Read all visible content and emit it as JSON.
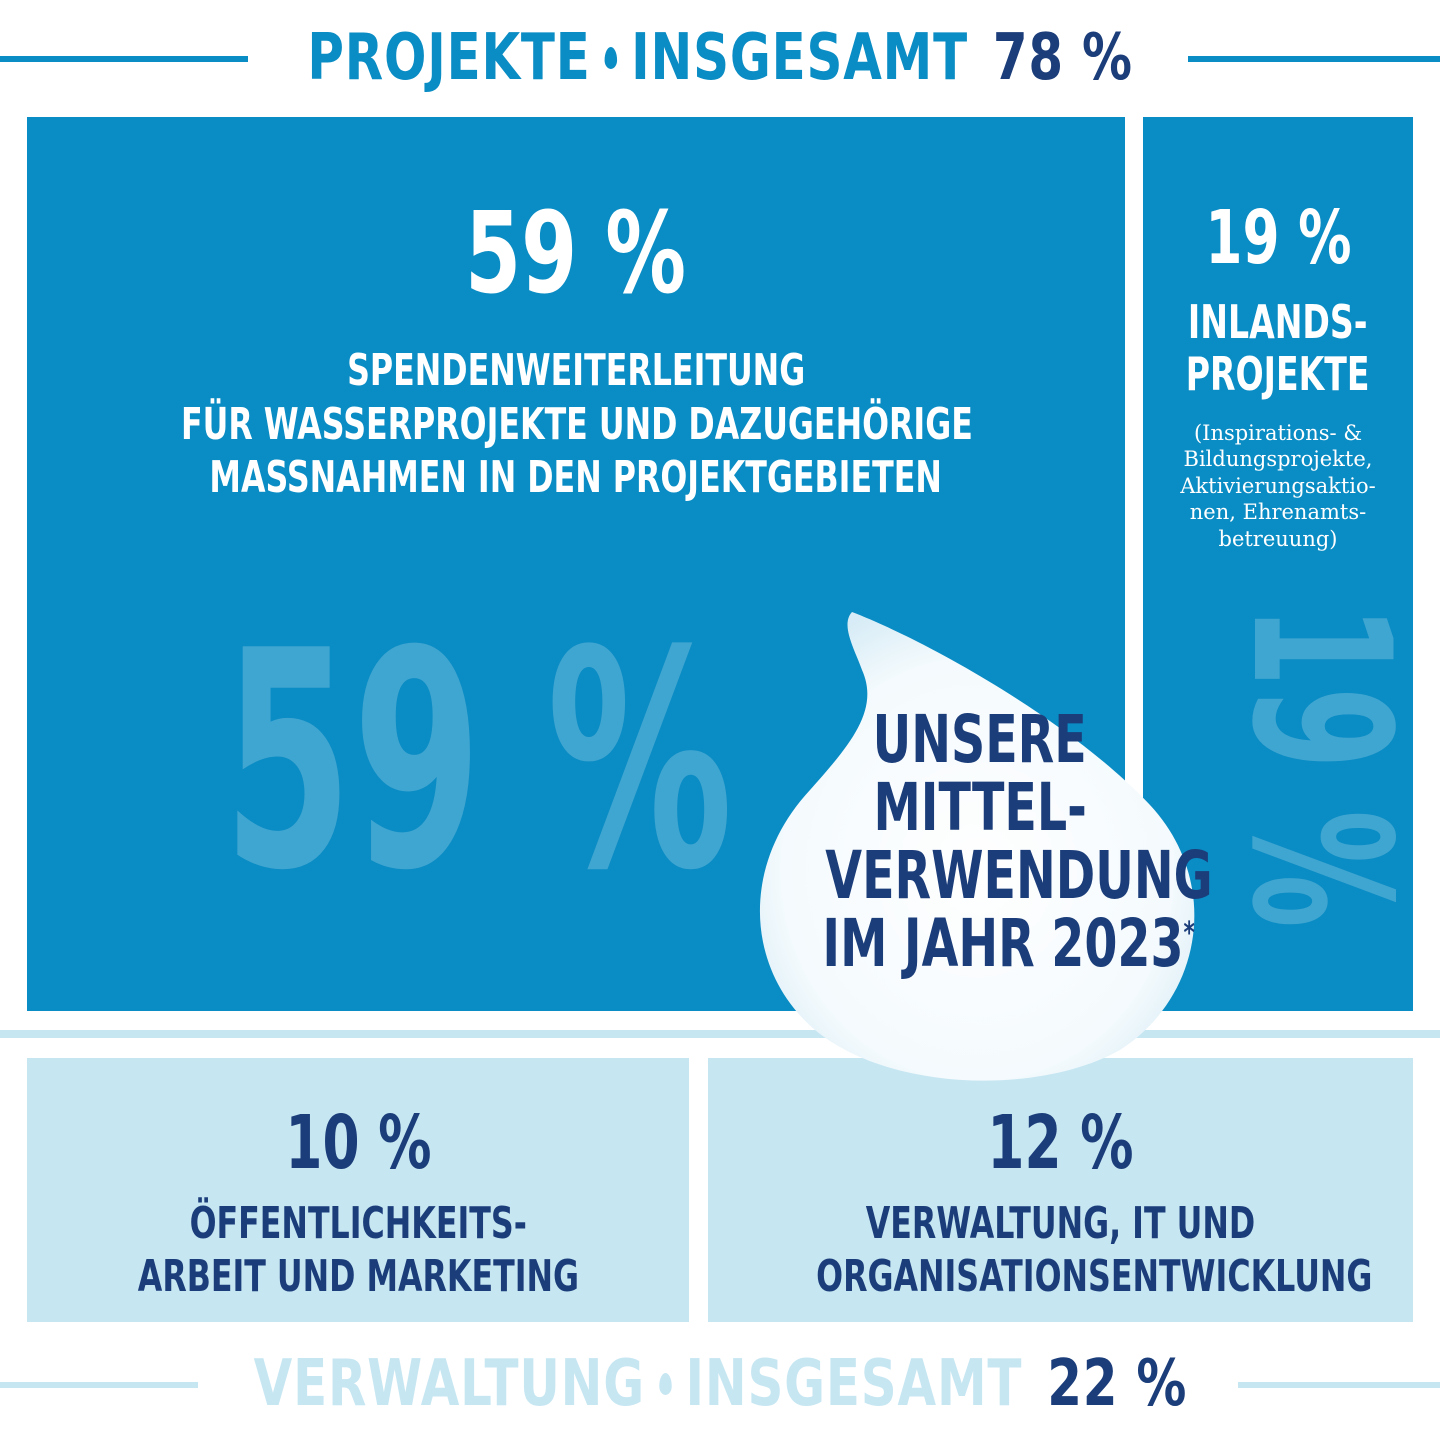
{
  "colors": {
    "projects_blue": "#0a8cc4",
    "light_blue": "#c6e6f2",
    "navy": "#1b3d7a",
    "line_light": "#c6e6f2"
  },
  "header_top": {
    "part1": "PROJEKTE",
    "part2": "INSGESAMT",
    "value": "78 %"
  },
  "header_bottom": {
    "part1": "VERWALTUNG",
    "part2": "INSGESAMT",
    "value": "22 %"
  },
  "chart_data": {
    "type": "treemap",
    "title": "UNSERE MITTELVERWENDUNG IM JAHR 2023*",
    "groups": [
      {
        "name": "PROJEKTE",
        "total": 78
      },
      {
        "name": "VERWALTUNG",
        "total": 22
      }
    ],
    "values": [
      {
        "group": "PROJEKTE",
        "percent": 59,
        "label": "SPENDENWEITERLEITUNG FÜR WASSERPROJEKTE UND DAZUGEHÖRIGE MASSNAHMEN IN DEN PROJEKTGEBIETEN"
      },
      {
        "group": "PROJEKTE",
        "percent": 19,
        "label": "INLANDS-PROJEKTE"
      },
      {
        "group": "VERWALTUNG",
        "percent": 10,
        "label": "ÖFFENTLICHKEITS-ARBEIT UND MARKETING"
      },
      {
        "group": "VERWALTUNG",
        "percent": 12,
        "label": "VERWALTUNG, IT UND ORGANISATIONSENTWICKLUNG"
      }
    ]
  },
  "boxes": {
    "main": {
      "pct": "59 %",
      "line1": "SPENDENWEITERLEITUNG",
      "line2": "FÜR WASSERPROJEKTE UND DAZUGEHÖRIGE",
      "line3": "MASSNAHMEN IN DEN PROJEKTGEBIETEN",
      "ghost": "59 %"
    },
    "inland": {
      "pct": "19 %",
      "line1": "INLANDS-",
      "line2": "PROJEKTE",
      "note1": "(Inspirations- &",
      "note2": "Bildungsprojekte,",
      "note3": "Aktivierungsaktio-",
      "note4": "nen, Ehrenamts-",
      "note5": "betreuung)",
      "ghost": "19 %"
    },
    "marketing": {
      "pct": "10 %",
      "line1": "ÖFFENTLICHKEITS-",
      "line2": "ARBEIT UND MARKETING"
    },
    "admin": {
      "pct": "12 %",
      "line1": "VERWALTUNG, IT UND",
      "line2": "ORGANISATIONSENTWICKLUNG"
    }
  },
  "drop": {
    "line1": "UNSERE",
    "line2": "MITTEL-",
    "line3": "VERWENDUNG",
    "line4": "IM JAHR 2023",
    "asterisk": "*"
  }
}
